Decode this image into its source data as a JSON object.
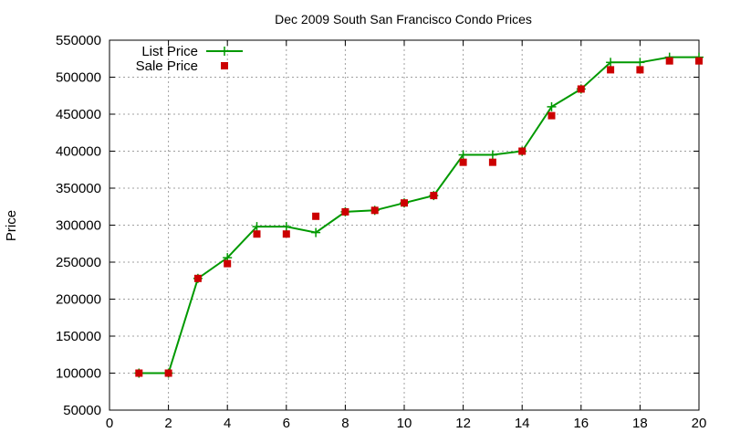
{
  "chart_data": {
    "type": "line",
    "title": "Dec 2009 South San Francisco Condo Prices",
    "xlabel": "",
    "ylabel": "Price",
    "xlim": [
      0,
      20
    ],
    "ylim": [
      50000,
      550000
    ],
    "xticks": [
      0,
      2,
      4,
      6,
      8,
      10,
      12,
      14,
      16,
      18,
      20
    ],
    "yticks": [
      50000,
      100000,
      150000,
      200000,
      250000,
      300000,
      350000,
      400000,
      450000,
      500000,
      550000
    ],
    "grid": true,
    "legend_position": "top-left",
    "series": [
      {
        "name": "List Price",
        "style": "line-with-plus-markers",
        "color": "#009900",
        "x": [
          1,
          2,
          3,
          4,
          5,
          6,
          7,
          8,
          9,
          10,
          11,
          12,
          13,
          14,
          15,
          16,
          17,
          18,
          19,
          20
        ],
        "y": [
          100000,
          100000,
          228000,
          256000,
          298000,
          298000,
          290000,
          318000,
          320000,
          330000,
          340000,
          395000,
          395000,
          400000,
          460000,
          484000,
          520000,
          520000,
          527000,
          527000
        ]
      },
      {
        "name": "Sale Price",
        "style": "square-markers",
        "color": "#cc0000",
        "x": [
          1,
          2,
          3,
          4,
          5,
          6,
          7,
          8,
          9,
          10,
          11,
          12,
          13,
          14,
          15,
          16,
          17,
          18,
          19,
          20
        ],
        "y": [
          100000,
          100000,
          228000,
          248000,
          288000,
          288000,
          312000,
          318000,
          320000,
          330000,
          340000,
          385000,
          385000,
          400000,
          448000,
          484000,
          510000,
          510000,
          522000,
          522000
        ]
      }
    ]
  }
}
